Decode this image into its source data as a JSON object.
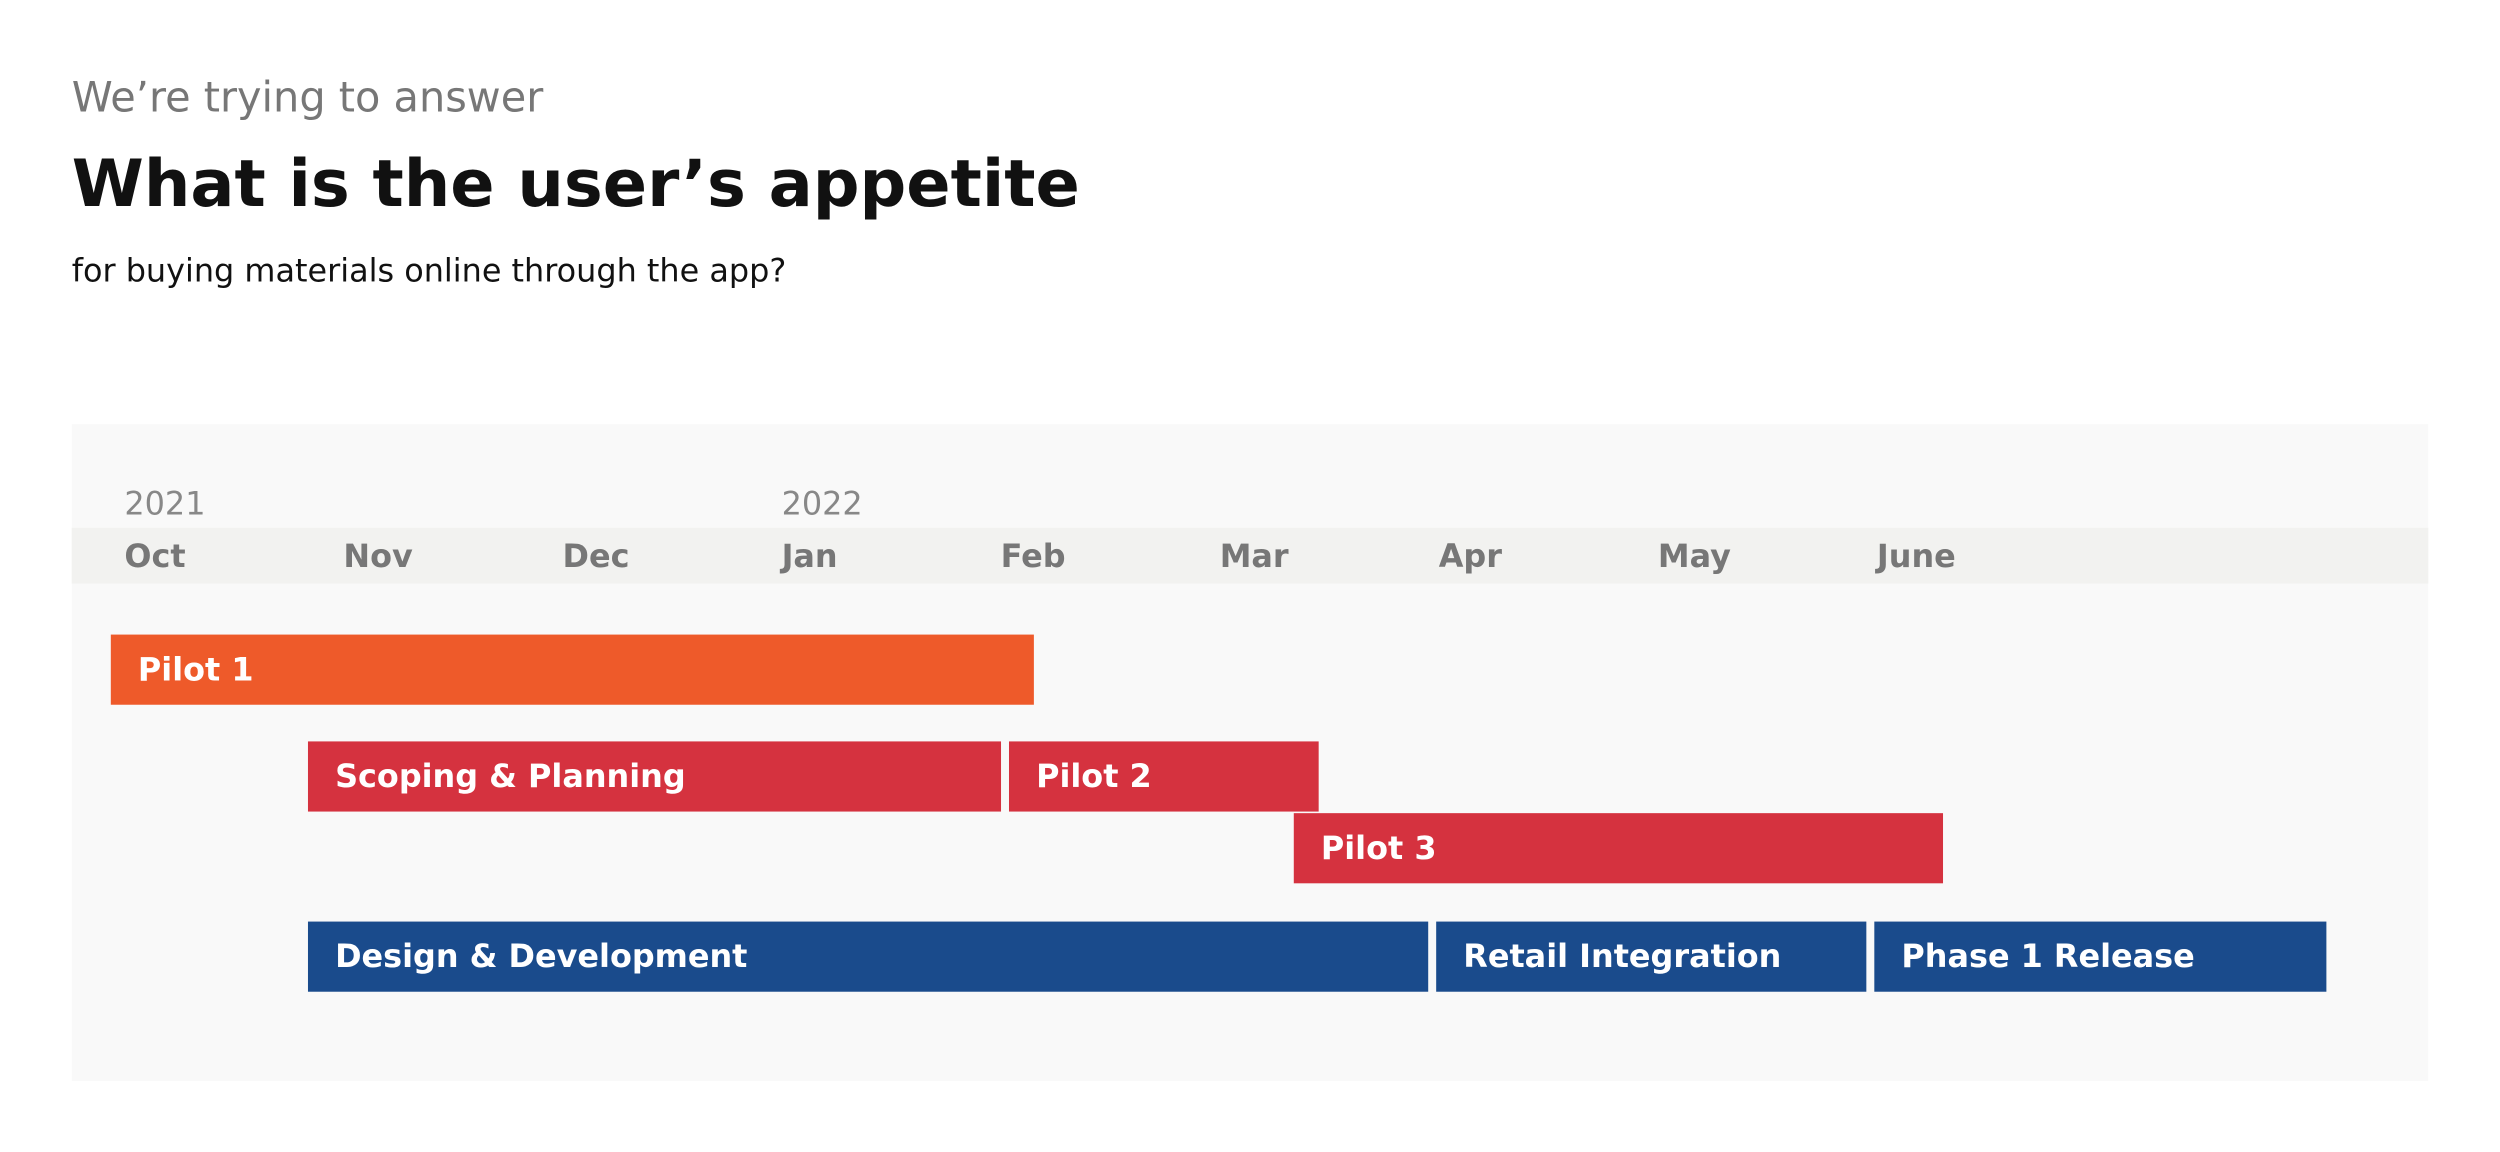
{
  "chart_data": {
    "type": "gantt",
    "kicker": "We’re trying to answer",
    "title": "What is the user’s appetite",
    "subtitle": "for buying materials online through the app?",
    "categories": [
      "Oct",
      "Nov",
      "Dec",
      "Jan",
      "Feb",
      "Mar",
      "Apr",
      "May",
      "June"
    ],
    "year_labels": [
      "2021",
      null,
      null,
      "2022",
      null,
      null,
      null,
      null,
      null
    ],
    "rows": [
      [
        {
          "name": "Pilot 1",
          "start": 0,
          "end": 4.25,
          "color": "#ee5a2a"
        }
      ],
      [
        {
          "name": "Scoping & Planning",
          "start": 0.9,
          "end": 4.1,
          "color": "#d5323f"
        },
        {
          "name": "Pilot 2",
          "start": 4.1,
          "end": 5.55,
          "color": "#d5323f"
        }
      ],
      [
        {
          "name": "Pilot 3",
          "start": 5.4,
          "end": 8.4,
          "color": "#d5323f"
        }
      ],
      [
        {
          "name": "Design & Development",
          "start": 0.9,
          "end": 6.05,
          "color": "#1a4b8c"
        },
        {
          "name": "Retail Integration",
          "start": 6.05,
          "end": 8.05,
          "color": "#1a4b8c"
        },
        {
          "name": "Phase 1 Release",
          "start": 8.05,
          "end": 10.15,
          "color": "#1a4b8c"
        }
      ]
    ]
  }
}
